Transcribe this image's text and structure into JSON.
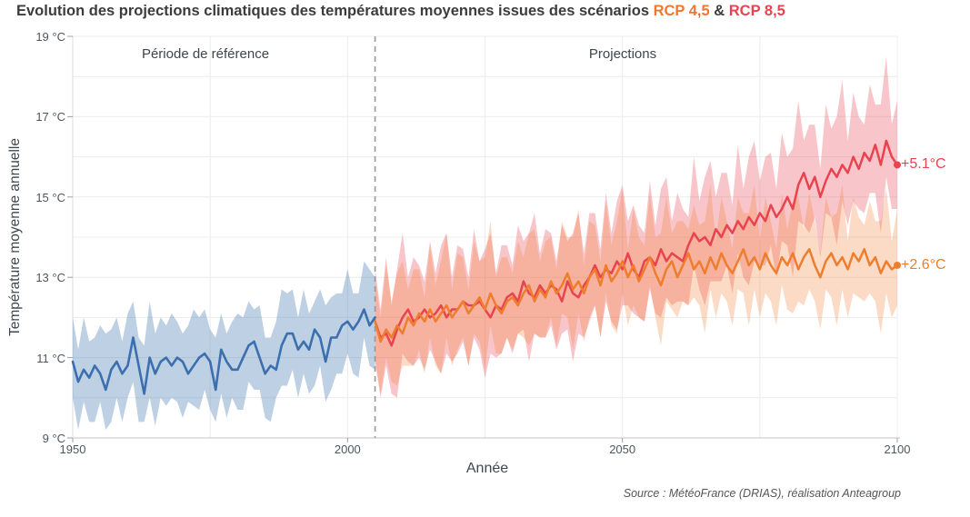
{
  "title": {
    "text": "Evolution des projections climatiques des températures moyennes issues des scénarios",
    "rcp45": "RCP 4,5",
    "amp": "&",
    "rcp85": "RCP 8,5"
  },
  "labels": {
    "reference_period": "Période de référence",
    "projections": "Projections",
    "rcp85_annotation": "+5.1°C",
    "rcp45_annotation": "+2.6°C"
  },
  "axis": {
    "y_label": "Température moyenne annuelle",
    "x_label": "Année",
    "y_ticks": [
      "19 °C",
      "17 °C",
      "15 °C",
      "13 °C",
      "11 °C",
      "9 °C"
    ],
    "x_ticks": [
      "1950",
      "2000",
      "2050",
      "2100"
    ]
  },
  "source": "Source : MétéoFrance (DRIAS), réalisation Anteagroup",
  "colors": {
    "title_text": "#3c3c3c",
    "rcp45_accent": "#ee7d2e",
    "rcp85_accent": "#e8434e",
    "reference_line": "#3b6fae",
    "gridline": "#ececec",
    "dashed_separator": "#97989a",
    "tick_text": "#4d565e"
  },
  "chart_data": {
    "type": "line",
    "title": "Evolution des projections climatiques des températures moyennes issues des scénarios RCP 4,5 & RCP 8,5",
    "xlabel": "Année",
    "ylabel": "Température moyenne annuelle",
    "xlim": [
      1950,
      2100
    ],
    "ylim": [
      9,
      19
    ],
    "y_tick_values": [
      19,
      17,
      15,
      13,
      11,
      9
    ],
    "x_tick_values": [
      1950,
      2000,
      2050,
      2100
    ],
    "grid": {
      "temps": [
        10,
        11,
        12,
        13,
        14,
        15,
        16,
        17,
        18,
        19
      ],
      "years": [
        1975,
        2000,
        2025,
        2050,
        2075,
        2100
      ]
    },
    "separator_year": 2005,
    "annotations": [
      {
        "series": "rcp85",
        "label": "+5.1°C",
        "value_at_2100": 15.8
      },
      {
        "series": "rcp45",
        "label": "+2.6°C",
        "value_at_2100": 13.3
      }
    ],
    "series": [
      {
        "name": "reference",
        "label": "Période de référence",
        "color": "#3b6fae",
        "band_color": "rgba(59,111,174,0.33)",
        "year_start": 1950,
        "year_step": 1,
        "values": [
          10.9,
          10.4,
          10.7,
          10.5,
          10.8,
          10.6,
          10.2,
          10.7,
          10.9,
          10.6,
          10.8,
          11.5,
          10.8,
          10.1,
          11.0,
          10.6,
          10.9,
          11.0,
          10.8,
          11.0,
          10.9,
          10.6,
          10.8,
          11.0,
          11.1,
          10.9,
          10.2,
          11.2,
          10.9,
          10.7,
          10.7,
          11.0,
          11.3,
          11.4,
          11.0,
          10.6,
          10.8,
          10.7,
          11.3,
          11.6,
          11.6,
          11.2,
          11.4,
          11.2,
          11.7,
          11.5,
          10.9,
          11.5,
          11.5,
          11.8,
          11.9,
          11.7,
          11.9,
          12.2,
          11.8,
          12.0
        ],
        "spread_lo": [
          0.9,
          1.2,
          0.8,
          1.1,
          1.4,
          0.7,
          1.0,
          1.3,
          0.9,
          1.2,
          0.8,
          1.1,
          1.4,
          0.7,
          1.0,
          1.3,
          0.9,
          1.2,
          0.8,
          1.1,
          1.4,
          0.7,
          1.0,
          1.3,
          0.9,
          1.2,
          0.8,
          1.1,
          1.4,
          0.7,
          1.0,
          1.3,
          0.9,
          1.2,
          0.8,
          1.1,
          1.4,
          0.7,
          1.0,
          1.3,
          0.9,
          1.2,
          0.8,
          1.1,
          1.4,
          0.7,
          1.0,
          1.3,
          0.9,
          1.2,
          0.8,
          1.1,
          1.4,
          0.7,
          1.0,
          1.3
        ],
        "spread_up": [
          1.1,
          0.8,
          1.3,
          0.9,
          0.7,
          1.2,
          1.4,
          1.0,
          1.1,
          0.8,
          1.3,
          0.9,
          0.7,
          1.2,
          1.4,
          1.0,
          1.1,
          0.8,
          1.3,
          0.9,
          0.7,
          1.2,
          1.4,
          1.0,
          1.1,
          0.8,
          1.3,
          0.9,
          0.7,
          1.2,
          1.4,
          1.0,
          1.1,
          0.8,
          1.3,
          0.9,
          0.7,
          1.2,
          1.4,
          1.0,
          1.1,
          0.8,
          1.3,
          0.9,
          0.7,
          1.2,
          1.4,
          1.0,
          1.1,
          0.8,
          1.3,
          0.9,
          0.7,
          1.2,
          1.4,
          1.0
        ]
      },
      {
        "name": "rcp85",
        "label": "RCP 8,5",
        "color": "#e8434e",
        "band_color": "rgba(232,67,78,0.30)",
        "year_start": 2005,
        "year_step": 1,
        "values": [
          11.9,
          11.5,
          11.6,
          11.3,
          11.7,
          12.0,
          12.2,
          11.9,
          12.0,
          12.2,
          12.0,
          12.1,
          12.3,
          12.0,
          12.2,
          12.2,
          12.4,
          12.3,
          12.3,
          12.4,
          12.2,
          12.0,
          12.3,
          12.2,
          12.5,
          12.6,
          12.4,
          12.9,
          12.6,
          12.5,
          12.8,
          12.6,
          12.8,
          12.7,
          12.4,
          12.9,
          12.6,
          12.5,
          12.8,
          13.0,
          13.3,
          13.0,
          13.2,
          13.1,
          13.4,
          13.2,
          13.6,
          13.2,
          13.0,
          13.4,
          13.5,
          13.3,
          13.7,
          13.4,
          13.6,
          13.5,
          13.4,
          13.8,
          14.1,
          13.9,
          14.0,
          13.8,
          14.2,
          14.0,
          14.3,
          14.1,
          14.4,
          14.2,
          14.5,
          14.3,
          14.6,
          14.4,
          14.8,
          14.5,
          14.7,
          15.0,
          14.7,
          15.3,
          15.6,
          15.2,
          15.5,
          15.0,
          15.4,
          15.7,
          15.5,
          15.8,
          15.6,
          16.0,
          15.7,
          16.1,
          15.9,
          16.3,
          15.8,
          16.4,
          16.0,
          15.8
        ],
        "spread_lo": [
          1.0,
          1.5,
          0.8,
          1.2,
          1.7,
          0.9,
          1.3,
          1.1,
          1.0,
          1.5,
          0.8,
          1.2,
          1.7,
          0.9,
          1.3,
          1.1,
          1.0,
          1.5,
          0.8,
          1.2,
          1.7,
          0.9,
          1.3,
          1.1,
          1.0,
          1.5,
          0.8,
          1.2,
          1.7,
          0.9,
          1.3,
          1.1,
          1.0,
          1.5,
          0.8,
          1.2,
          1.7,
          0.9,
          1.3,
          1.1,
          1.0,
          1.5,
          0.8,
          1.2,
          1.7,
          0.9,
          1.3,
          1.1,
          1.0,
          1.5,
          0.8,
          1.2,
          1.7,
          0.9,
          1.3,
          1.1,
          1.0,
          1.5,
          0.8,
          1.2,
          1.7,
          0.9,
          1.3,
          1.1,
          1.0,
          1.5,
          0.8,
          1.2,
          1.7,
          0.9,
          1.3,
          1.1,
          1.0,
          1.5,
          0.8,
          1.2,
          1.7,
          0.9,
          1.3,
          1.1,
          1.0,
          1.5,
          0.8,
          1.2,
          1.7,
          0.9,
          1.3,
          1.1,
          1.0,
          1.5,
          0.8,
          1.2,
          1.7,
          0.9,
          1.3,
          1.1
        ],
        "spread_up": [
          1.3,
          0.7,
          1.9,
          1.0,
          1.5,
          2.1,
          0.8,
          1.6,
          1.3,
          0.7,
          1.9,
          1.0,
          1.5,
          2.1,
          0.8,
          1.6,
          1.3,
          0.7,
          1.9,
          1.0,
          1.5,
          2.1,
          0.8,
          1.6,
          1.3,
          0.7,
          1.9,
          1.0,
          1.5,
          2.1,
          0.8,
          1.6,
          1.3,
          0.7,
          1.9,
          1.0,
          1.5,
          2.1,
          0.8,
          1.6,
          1.3,
          0.7,
          1.9,
          1.0,
          1.5,
          2.1,
          0.8,
          1.6,
          1.3,
          0.7,
          1.9,
          1.0,
          1.5,
          2.1,
          0.8,
          1.6,
          1.3,
          0.7,
          1.9,
          1.0,
          1.5,
          2.1,
          0.8,
          1.6,
          1.3,
          0.7,
          1.9,
          1.0,
          1.5,
          2.1,
          0.8,
          1.6,
          1.3,
          0.7,
          1.9,
          1.0,
          1.5,
          2.1,
          0.8,
          1.6,
          1.3,
          0.7,
          1.9,
          1.0,
          1.5,
          2.1,
          0.8,
          1.6,
          1.3,
          0.7,
          1.9,
          1.0,
          1.5,
          2.1,
          0.8,
          1.6
        ]
      },
      {
        "name": "rcp45",
        "label": "RCP 4,5",
        "color": "#ee7d2e",
        "band_color": "rgba(239,125,46,0.28)",
        "year_start": 2005,
        "year_step": 1,
        "values": [
          11.9,
          11.4,
          11.7,
          11.5,
          11.8,
          11.6,
          12.0,
          11.8,
          12.1,
          11.9,
          12.2,
          11.9,
          12.1,
          12.3,
          12.0,
          12.2,
          12.4,
          12.1,
          12.3,
          12.5,
          12.2,
          12.6,
          12.3,
          12.1,
          12.4,
          12.5,
          12.3,
          12.6,
          12.8,
          12.4,
          12.7,
          12.5,
          12.9,
          12.6,
          12.8,
          13.1,
          12.7,
          12.9,
          12.6,
          13.0,
          13.2,
          12.8,
          13.3,
          12.9,
          13.1,
          13.4,
          13.0,
          13.3,
          12.9,
          13.2,
          13.5,
          13.1,
          12.8,
          13.2,
          13.4,
          13.0,
          13.3,
          13.6,
          13.2,
          13.4,
          13.1,
          13.5,
          13.2,
          13.6,
          13.3,
          13.1,
          13.4,
          13.7,
          13.3,
          13.5,
          13.2,
          13.6,
          13.3,
          13.1,
          13.5,
          13.3,
          13.6,
          13.2,
          13.5,
          13.7,
          13.3,
          13.0,
          13.4,
          13.6,
          13.3,
          13.5,
          13.2,
          13.6,
          13.4,
          13.7,
          13.3,
          13.5,
          13.1,
          13.4,
          13.2,
          13.3
        ],
        "spread_lo": [
          0.9,
          1.3,
          0.7,
          1.1,
          1.5,
          0.8,
          1.2,
          1.0,
          0.9,
          1.3,
          0.7,
          1.1,
          1.5,
          0.8,
          1.2,
          1.0,
          0.9,
          1.3,
          0.7,
          1.1,
          1.5,
          0.8,
          1.2,
          1.0,
          0.9,
          1.3,
          0.7,
          1.1,
          1.5,
          0.8,
          1.2,
          1.0,
          0.9,
          1.3,
          0.7,
          1.1,
          1.5,
          0.8,
          1.2,
          1.0,
          0.9,
          1.3,
          0.7,
          1.1,
          1.5,
          0.8,
          1.2,
          1.0,
          0.9,
          1.3,
          0.7,
          1.1,
          1.5,
          0.8,
          1.2,
          1.0,
          0.9,
          1.3,
          0.7,
          1.1,
          1.5,
          0.8,
          1.2,
          1.0,
          0.9,
          1.3,
          0.7,
          1.1,
          1.5,
          0.8,
          1.2,
          1.0,
          0.9,
          1.3,
          0.7,
          1.1,
          1.5,
          0.8,
          1.2,
          1.0,
          0.9,
          1.3,
          0.7,
          1.1,
          1.5,
          0.8,
          1.2,
          1.0,
          0.9,
          1.3,
          0.7,
          1.1,
          1.5,
          0.8,
          1.2,
          1.0
        ],
        "spread_up": [
          1.1,
          0.6,
          1.6,
          0.9,
          1.3,
          1.8,
          0.7,
          1.4,
          1.1,
          0.6,
          1.6,
          0.9,
          1.3,
          1.8,
          0.7,
          1.4,
          1.1,
          0.6,
          1.6,
          0.9,
          1.3,
          1.8,
          0.7,
          1.4,
          1.1,
          0.6,
          1.6,
          0.9,
          1.3,
          1.8,
          0.7,
          1.4,
          1.1,
          0.6,
          1.6,
          0.9,
          1.3,
          1.8,
          0.7,
          1.4,
          1.1,
          0.6,
          1.6,
          0.9,
          1.3,
          1.8,
          0.7,
          1.4,
          1.1,
          0.6,
          1.6,
          0.9,
          1.3,
          1.8,
          0.7,
          1.4,
          1.1,
          0.6,
          1.6,
          0.9,
          1.3,
          1.8,
          0.7,
          1.4,
          1.1,
          0.6,
          1.6,
          0.9,
          1.3,
          1.8,
          0.7,
          1.4,
          1.1,
          0.6,
          1.6,
          0.9,
          1.3,
          1.8,
          0.7,
          1.4,
          1.1,
          0.6,
          1.6,
          0.9,
          1.3,
          1.8,
          0.7,
          1.4,
          1.1,
          0.6,
          1.6,
          0.9,
          1.3,
          1.8,
          0.7,
          1.4
        ]
      }
    ]
  }
}
